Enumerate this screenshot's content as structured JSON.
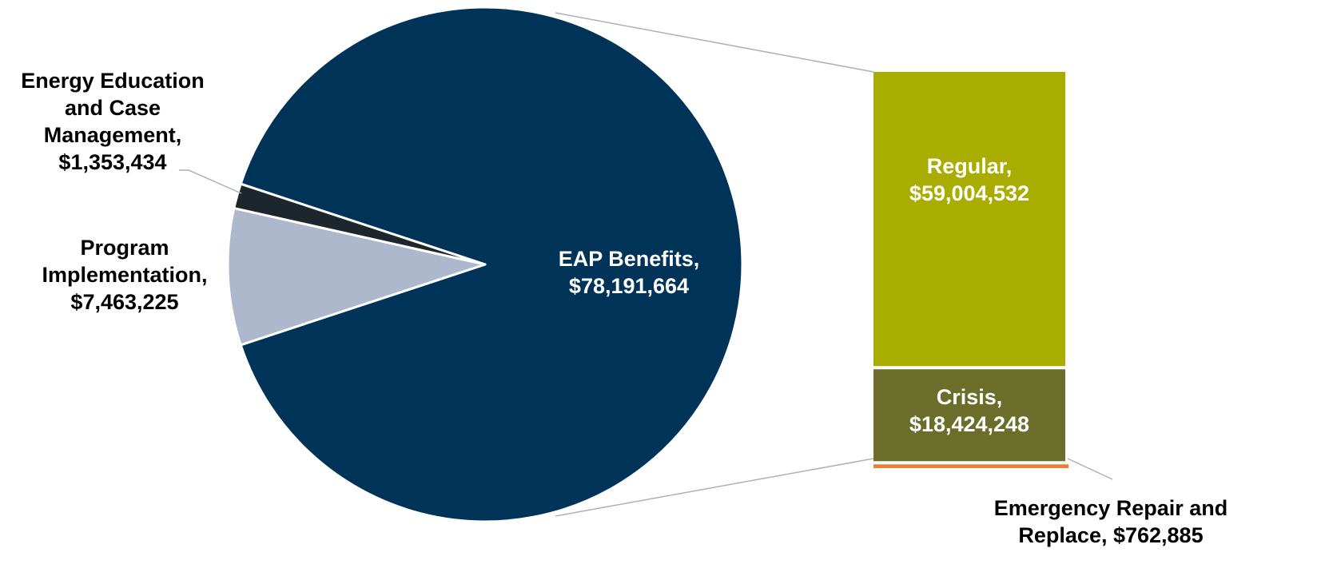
{
  "chart_data": {
    "type": "pie",
    "subtype": "pie-of-bar",
    "title": "",
    "pie_slices": [
      {
        "id": "eap-benefits",
        "label_lines": [
          "EAP Benefits,",
          "$78,191,664"
        ],
        "value": 78191664,
        "color": "#003358"
      },
      {
        "id": "program-implementation",
        "label_lines": [
          "Program",
          "Implementation,",
          "$7,463,225"
        ],
        "value": 7463225,
        "color": "#adb8cc"
      },
      {
        "id": "energy-education",
        "label_lines": [
          "Energy Education",
          "and Case",
          "Management,",
          "$1,353,434"
        ],
        "value": 1353434,
        "color": "#1e262d"
      }
    ],
    "breakdown_of": "eap-benefits",
    "bar_segments": [
      {
        "id": "regular",
        "label_lines": [
          "Regular,",
          "$59,004,532"
        ],
        "value": 59004532,
        "color": "#a8ad00"
      },
      {
        "id": "crisis",
        "label_lines": [
          "Crisis,",
          "$18,424,248"
        ],
        "value": 18424248,
        "color": "#6b6e2a"
      },
      {
        "id": "emergency-repair",
        "label_lines": [
          "Emergency Repair and",
          "Replace,  $762,885"
        ],
        "value": 762885,
        "color": "#ea7f3a"
      }
    ]
  }
}
